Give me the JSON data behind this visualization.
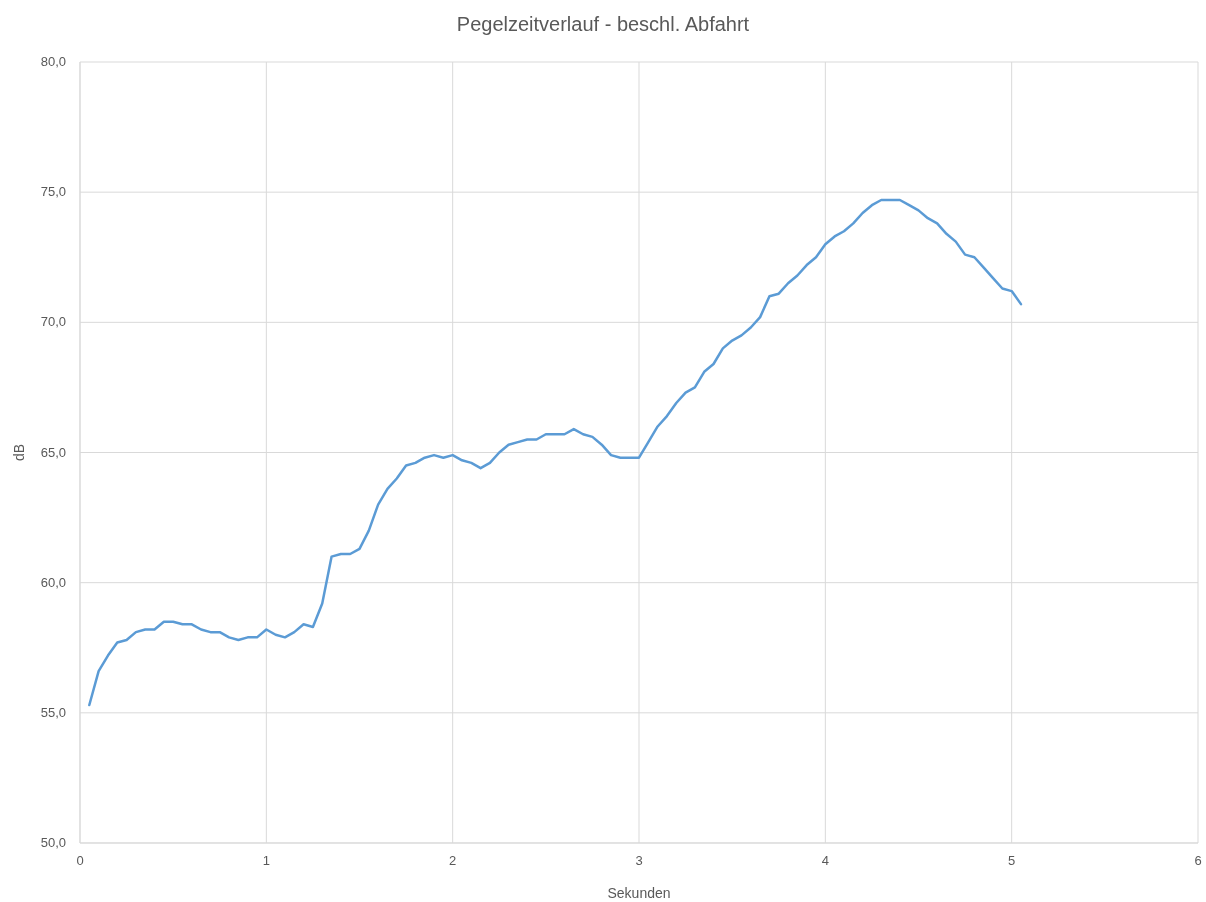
{
  "chart_data": {
    "type": "line",
    "title": "Pegelzeitverlauf - beschl. Abfahrt",
    "xlabel": "Sekunden",
    "ylabel": "dB",
    "x": [
      0.05,
      0.1,
      0.15,
      0.2,
      0.25,
      0.3,
      0.35,
      0.4,
      0.45,
      0.5,
      0.55,
      0.6,
      0.65,
      0.7,
      0.75,
      0.8,
      0.85,
      0.9,
      0.95,
      1.0,
      1.05,
      1.1,
      1.15,
      1.2,
      1.25,
      1.3,
      1.35,
      1.4,
      1.45,
      1.5,
      1.55,
      1.6,
      1.65,
      1.7,
      1.75,
      1.8,
      1.85,
      1.9,
      1.95,
      2.0,
      2.05,
      2.1,
      2.15,
      2.2,
      2.25,
      2.3,
      2.35,
      2.4,
      2.45,
      2.5,
      2.55,
      2.6,
      2.65,
      2.7,
      2.75,
      2.8,
      2.85,
      2.9,
      2.95,
      3.0,
      3.05,
      3.1,
      3.15,
      3.2,
      3.25,
      3.3,
      3.35,
      3.4,
      3.45,
      3.5,
      3.55,
      3.6,
      3.65,
      3.7,
      3.75,
      3.8,
      3.85,
      3.9,
      3.95,
      4.0,
      4.05,
      4.1,
      4.15,
      4.2,
      4.25,
      4.3,
      4.35,
      4.4,
      4.45,
      4.5,
      4.55,
      4.6,
      4.65,
      4.7,
      4.75,
      4.8,
      4.85,
      4.9,
      4.95,
      5.0,
      5.05
    ],
    "series": [
      {
        "color": "#5b9bd5",
        "values": [
          55.3,
          56.6,
          57.2,
          57.7,
          57.8,
          58.1,
          58.2,
          58.2,
          58.5,
          58.5,
          58.4,
          58.4,
          58.2,
          58.1,
          58.1,
          57.9,
          57.8,
          57.9,
          57.9,
          58.2,
          58.0,
          57.9,
          58.1,
          58.4,
          58.3,
          59.2,
          61.0,
          61.1,
          61.1,
          61.3,
          62.0,
          63.0,
          63.6,
          64.0,
          64.5,
          64.6,
          64.8,
          64.9,
          64.8,
          64.9,
          64.7,
          64.6,
          64.4,
          64.6,
          65.0,
          65.3,
          65.4,
          65.5,
          65.5,
          65.7,
          65.7,
          65.7,
          65.9,
          65.7,
          65.6,
          65.3,
          64.9,
          64.8,
          64.8,
          64.8,
          65.4,
          66.0,
          66.4,
          66.9,
          67.3,
          67.5,
          68.1,
          68.4,
          69.0,
          69.3,
          69.5,
          69.8,
          70.2,
          71.0,
          71.1,
          71.5,
          71.8,
          72.2,
          72.5,
          73.0,
          73.3,
          73.5,
          73.8,
          74.2,
          74.5,
          74.7,
          74.7,
          74.7,
          74.5,
          74.3,
          74.0,
          73.8,
          73.4,
          73.1,
          72.6,
          72.5,
          72.1,
          71.7,
          71.3,
          71.2,
          70.7
        ]
      }
    ],
    "xlim": [
      0,
      6
    ],
    "xticks": [
      0,
      1,
      2,
      3,
      4,
      5,
      6
    ],
    "ylim": [
      50,
      80
    ],
    "yticks": [
      {
        "value": 50,
        "label": "50,0"
      },
      {
        "value": 55,
        "label": "55,0"
      },
      {
        "value": 60,
        "label": "60,0"
      },
      {
        "value": 65,
        "label": "65,0"
      },
      {
        "value": 70,
        "label": "70,0"
      },
      {
        "value": 75,
        "label": "75,0"
      },
      {
        "value": 80,
        "label": "80,0"
      }
    ],
    "grid": true,
    "marker": "none",
    "line_style": "solid"
  }
}
